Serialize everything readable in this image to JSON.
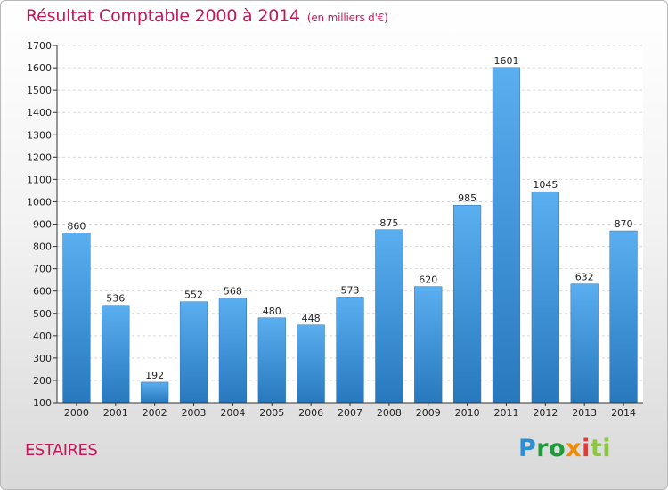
{
  "header": {
    "title": "Résultat Comptable 2000 à 2014",
    "subtitle": "(en milliers d'€)"
  },
  "footer": {
    "place": "ESTAIRES",
    "logo": {
      "parts": [
        "P",
        "ro",
        "x",
        "i",
        "ti"
      ],
      "colors": [
        "#2a8fd6",
        "#1f9b3a",
        "#f08c00",
        "#e53935",
        "#8dc63f"
      ]
    }
  },
  "chart_data": {
    "type": "bar",
    "title": "Résultat Comptable 2000 à 2014",
    "subtitle": "(en milliers d'€)",
    "categories": [
      "2000",
      "2001",
      "2002",
      "2003",
      "2004",
      "2005",
      "2006",
      "2007",
      "2008",
      "2009",
      "2010",
      "2011",
      "2012",
      "2013",
      "2014"
    ],
    "values": [
      860,
      536,
      192,
      552,
      568,
      480,
      448,
      573,
      875,
      620,
      985,
      1601,
      1045,
      632,
      870
    ],
    "ylim": [
      100,
      1700
    ],
    "yticks": [
      100,
      200,
      300,
      400,
      500,
      600,
      700,
      800,
      900,
      1000,
      1100,
      1200,
      1300,
      1400,
      1500,
      1600,
      1700
    ],
    "grid": true,
    "bar_color": "#3f9be0",
    "data_labels": true
  }
}
